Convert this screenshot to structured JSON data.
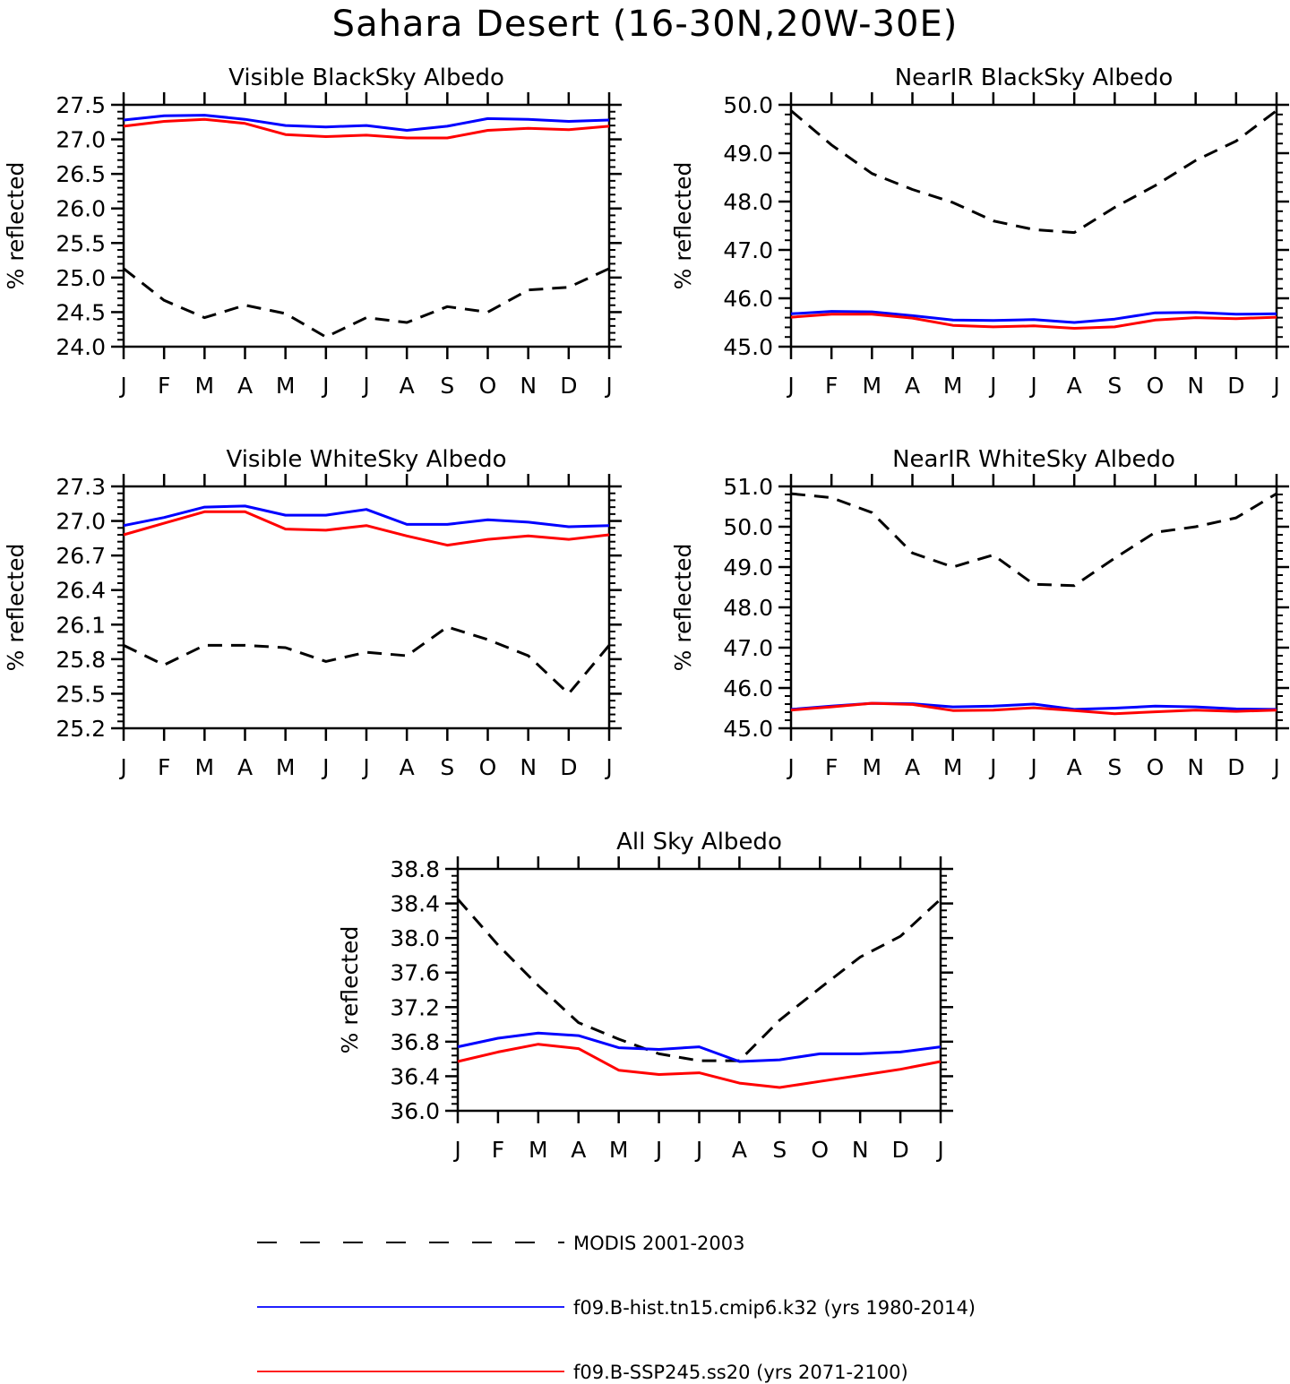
{
  "title": "Sahara Desert (16-30N,20W-30E)",
  "colors": {
    "modis": "#000000",
    "hist": "#0000ff",
    "ssp": "#ff0000"
  },
  "legend": [
    {
      "key": "modis",
      "label": "MODIS 2001-2003",
      "style": "dashed"
    },
    {
      "key": "hist",
      "label": "f09.B-hist.tn15.cmip6.k32 (yrs 1980-2014)",
      "style": "solid"
    },
    {
      "key": "ssp",
      "label": "f09.B-SSP245.ss20 (yrs 2071-2100)",
      "style": "solid"
    }
  ],
  "chart_data": [
    {
      "type": "line",
      "title": "Visible BlackSky Albedo",
      "ylabel": "% reflected",
      "categories": [
        "J",
        "F",
        "M",
        "A",
        "M",
        "J",
        "J",
        "A",
        "S",
        "O",
        "N",
        "D",
        "J"
      ],
      "ylim": [
        24.0,
        27.5
      ],
      "yticks": [
        "24.0",
        "24.5",
        "25.0",
        "25.5",
        "26.0",
        "26.5",
        "27.0",
        "27.5"
      ],
      "series": [
        {
          "name": "MODIS 2001-2003",
          "key": "modis",
          "values": [
            25.13,
            24.67,
            24.42,
            24.6,
            24.48,
            24.14,
            24.42,
            24.35,
            24.58,
            24.5,
            24.82,
            24.86,
            25.13
          ]
        },
        {
          "name": "f09.B-hist.tn15.cmip6.k32 (yrs 1980-2014)",
          "key": "hist",
          "values": [
            27.28,
            27.34,
            27.35,
            27.29,
            27.2,
            27.18,
            27.2,
            27.13,
            27.19,
            27.3,
            27.29,
            27.26,
            27.28
          ]
        },
        {
          "name": "f09.B-SSP245.ss20 (yrs 2071-2100)",
          "key": "ssp",
          "values": [
            27.19,
            27.26,
            27.29,
            27.23,
            27.07,
            27.04,
            27.06,
            27.02,
            27.02,
            27.13,
            27.16,
            27.14,
            27.19
          ]
        }
      ]
    },
    {
      "type": "line",
      "title": "NearIR BlackSky Albedo",
      "ylabel": "% reflected",
      "categories": [
        "J",
        "F",
        "M",
        "A",
        "M",
        "J",
        "J",
        "A",
        "S",
        "O",
        "N",
        "D",
        "J"
      ],
      "ylim": [
        45.0,
        50.0
      ],
      "yticks": [
        "45.0",
        "46.0",
        "47.0",
        "48.0",
        "49.0",
        "50.0"
      ],
      "series": [
        {
          "name": "MODIS 2001-2003",
          "key": "modis",
          "values": [
            49.88,
            49.17,
            48.58,
            48.25,
            47.98,
            47.6,
            47.42,
            47.36,
            47.88,
            48.33,
            48.85,
            49.25,
            49.88
          ]
        },
        {
          "name": "f09.B-hist.tn15.cmip6.k32 (yrs 1980-2014)",
          "key": "hist",
          "values": [
            45.68,
            45.73,
            45.72,
            45.64,
            45.55,
            45.54,
            45.56,
            45.5,
            45.57,
            45.7,
            45.71,
            45.67,
            45.68
          ]
        },
        {
          "name": "f09.B-SSP245.ss20 (yrs 2071-2100)",
          "key": "ssp",
          "values": [
            45.61,
            45.67,
            45.67,
            45.59,
            45.44,
            45.41,
            45.43,
            45.38,
            45.41,
            45.55,
            45.6,
            45.58,
            45.61
          ]
        }
      ]
    },
    {
      "type": "line",
      "title": "Visible WhiteSky Albedo",
      "ylabel": "% reflected",
      "categories": [
        "J",
        "F",
        "M",
        "A",
        "M",
        "J",
        "J",
        "A",
        "S",
        "O",
        "N",
        "D",
        "J"
      ],
      "ylim": [
        25.2,
        27.3
      ],
      "yticks": [
        "25.2",
        "25.5",
        "25.8",
        "26.1",
        "26.4",
        "26.7",
        "27.0",
        "27.3"
      ],
      "series": [
        {
          "name": "MODIS 2001-2003",
          "key": "modis",
          "values": [
            25.92,
            25.75,
            25.92,
            25.92,
            25.9,
            25.78,
            25.86,
            25.83,
            26.08,
            25.97,
            25.83,
            25.5,
            25.92
          ]
        },
        {
          "name": "f09.B-hist.tn15.cmip6.k32 (yrs 1980-2014)",
          "key": "hist",
          "values": [
            26.96,
            27.03,
            27.12,
            27.13,
            27.05,
            27.05,
            27.1,
            26.97,
            26.97,
            27.01,
            26.99,
            26.95,
            26.96
          ]
        },
        {
          "name": "f09.B-SSP245.ss20 (yrs 2071-2100)",
          "key": "ssp",
          "values": [
            26.88,
            26.98,
            27.08,
            27.08,
            26.93,
            26.92,
            26.96,
            26.87,
            26.79,
            26.84,
            26.87,
            26.84,
            26.88
          ]
        }
      ]
    },
    {
      "type": "line",
      "title": "NearIR WhiteSky Albedo",
      "ylabel": "% reflected",
      "categories": [
        "J",
        "F",
        "M",
        "A",
        "M",
        "J",
        "J",
        "A",
        "S",
        "O",
        "N",
        "D",
        "J"
      ],
      "ylim": [
        45.0,
        51.0
      ],
      "yticks": [
        "45.0",
        "46.0",
        "47.0",
        "48.0",
        "49.0",
        "50.0",
        "51.0"
      ],
      "series": [
        {
          "name": "MODIS 2001-2003",
          "key": "modis",
          "values": [
            50.82,
            50.72,
            50.35,
            49.35,
            49.0,
            49.3,
            48.57,
            48.54,
            49.22,
            49.86,
            50.0,
            50.22,
            50.82
          ]
        },
        {
          "name": "f09.B-hist.tn15.cmip6.k32 (yrs 1980-2014)",
          "key": "hist",
          "values": [
            45.47,
            45.55,
            45.62,
            45.61,
            45.53,
            45.55,
            45.6,
            45.47,
            45.5,
            45.55,
            45.53,
            45.48,
            45.47
          ]
        },
        {
          "name": "f09.B-SSP245.ss20 (yrs 2071-2100)",
          "key": "ssp",
          "values": [
            45.45,
            45.53,
            45.62,
            45.59,
            45.44,
            45.45,
            45.51,
            45.44,
            45.36,
            45.41,
            45.45,
            45.42,
            45.45
          ]
        }
      ]
    },
    {
      "type": "line",
      "title": "All Sky Albedo",
      "ylabel": "% reflected",
      "categories": [
        "J",
        "F",
        "M",
        "A",
        "M",
        "J",
        "J",
        "A",
        "S",
        "O",
        "N",
        "D",
        "J"
      ],
      "ylim": [
        36.0,
        38.8
      ],
      "yticks": [
        "36.0",
        "36.4",
        "36.8",
        "37.2",
        "37.6",
        "38.0",
        "38.4",
        "38.8"
      ],
      "series": [
        {
          "name": "MODIS 2001-2003",
          "key": "modis",
          "values": [
            38.45,
            37.92,
            37.45,
            37.02,
            36.83,
            36.66,
            36.58,
            36.58,
            37.05,
            37.42,
            37.78,
            38.02,
            38.45
          ]
        },
        {
          "name": "f09.B-hist.tn15.cmip6.k32 (yrs 1980-2014)",
          "key": "hist",
          "values": [
            36.74,
            36.84,
            36.9,
            36.87,
            36.73,
            36.71,
            36.74,
            36.57,
            36.59,
            36.66,
            36.66,
            36.68,
            36.74
          ]
        },
        {
          "name": "f09.B-SSP245.ss20 (yrs 2071-2100)",
          "key": "ssp",
          "values": [
            36.57,
            36.68,
            36.77,
            36.72,
            36.47,
            36.42,
            36.44,
            36.32,
            36.27,
            36.34,
            36.41,
            36.48,
            36.57
          ]
        }
      ]
    }
  ]
}
